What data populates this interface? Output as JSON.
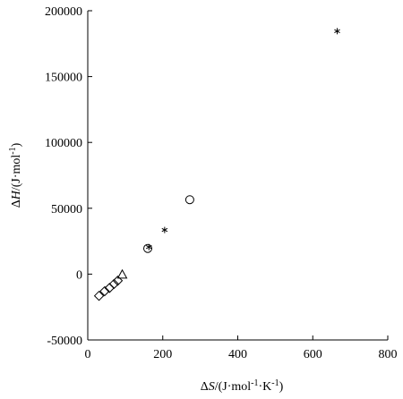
{
  "chart_data": {
    "type": "scatter",
    "xlim": [
      0,
      800
    ],
    "ylim": [
      -50000,
      200000
    ],
    "x_ticks": [
      0,
      200,
      400,
      600,
      800
    ],
    "y_ticks": [
      -50000,
      0,
      50000,
      100000,
      150000,
      200000
    ],
    "x_tick_labels": [
      "0",
      "200",
      "400",
      "600",
      "800"
    ],
    "y_tick_labels": [
      "-50000",
      "0",
      "50000",
      "100000",
      "150000",
      "200000"
    ],
    "xlabel": {
      "prefix": "Δ",
      "var": "S",
      "unit_a": "/(J·mol",
      "exp_a": "-1",
      "unit_b": "·K",
      "exp_b": "-1",
      "suffix": ")"
    },
    "ylabel": {
      "prefix": "Δ",
      "var": "H",
      "unit_a": "/(J·mol",
      "exp_a": "-1",
      "suffix": ")"
    },
    "grid": false,
    "legend": "none",
    "series": [
      {
        "marker": "diamond",
        "points": [
          [
            30,
            -16500
          ],
          [
            45,
            -13000
          ],
          [
            58,
            -10500
          ],
          [
            70,
            -7500
          ],
          [
            80,
            -5000
          ]
        ]
      },
      {
        "marker": "triangle",
        "points": [
          [
            92,
            -300
          ]
        ]
      },
      {
        "marker": "circle",
        "points": [
          [
            160,
            19500
          ],
          [
            272,
            56500
          ]
        ]
      },
      {
        "marker": "asterisk",
        "points": [
          [
            163,
            20500
          ],
          [
            205,
            33500
          ],
          [
            665,
            184500
          ]
        ]
      }
    ]
  }
}
